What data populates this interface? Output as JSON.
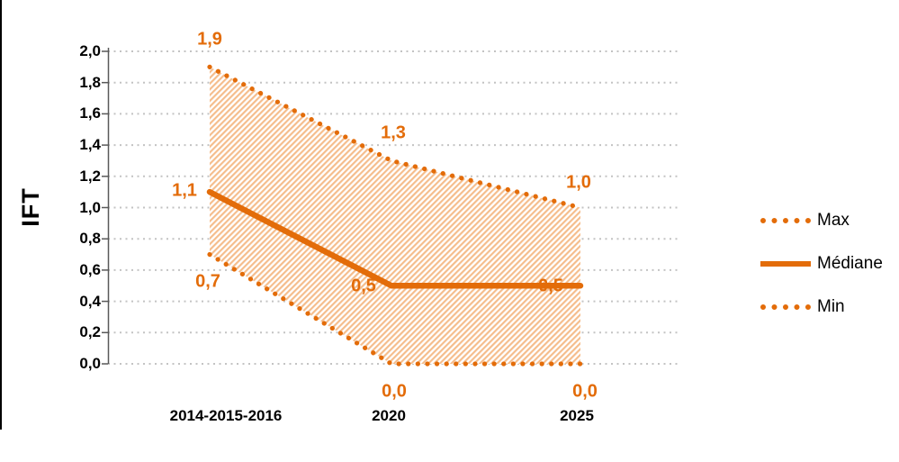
{
  "chart_data": {
    "type": "line",
    "title": "",
    "ylabel": "IFT",
    "xlabel": "",
    "categories": [
      "2014-2015-2016",
      "2020",
      "2025"
    ],
    "series": [
      {
        "name": "Max",
        "line_style": "dotted",
        "values": [
          1.9,
          1.3,
          1.0
        ],
        "point_labels": [
          "1,9",
          "1,3",
          "1,0"
        ]
      },
      {
        "name": "Médiane",
        "line_style": "solid",
        "values": [
          1.1,
          0.5,
          0.5
        ],
        "point_labels": [
          "1,1",
          "0,5",
          "0,5"
        ]
      },
      {
        "name": "Min",
        "line_style": "dotted",
        "values": [
          0.7,
          0.0,
          0.0
        ],
        "point_labels": [
          "0,7",
          "0,0",
          "0,0"
        ]
      }
    ],
    "band_between": [
      "Max",
      "Min"
    ],
    "band_fill": "hatched-diagonal",
    "ylim": [
      0,
      2
    ],
    "ytick_step": 0.2,
    "ytick_labels": [
      "0,0",
      "0,2",
      "0,4",
      "0,6",
      "0,8",
      "1,0",
      "1,2",
      "1,4",
      "1,6",
      "1,8",
      "2,0"
    ],
    "grid": "horizontal dotted",
    "legend_position": "right"
  },
  "colors": {
    "series": "#E36C09",
    "hatch_stripe": "#F5BD8C",
    "gridline": "#C3C3C3",
    "axis": "#595959",
    "text": "#000000"
  }
}
